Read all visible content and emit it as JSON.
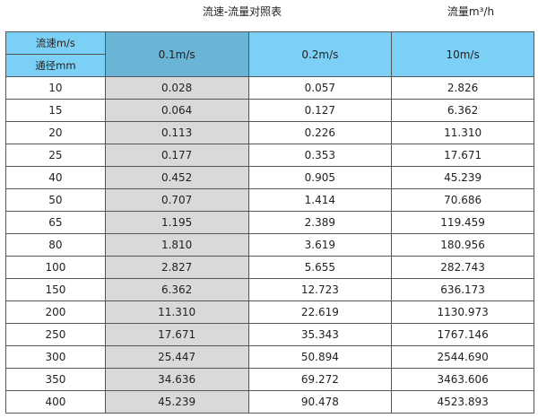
{
  "title": "流速-流量对照表",
  "unit_label": "流量m³/h",
  "header": {
    "velocity_label": "流速m/s",
    "diameter_label": "通径mm",
    "columns": [
      "0.1m/s",
      "0.2m/s",
      "10m/s"
    ]
  },
  "colors": {
    "header": "#7ccff5",
    "header_highlight": "#6ab4d6",
    "highlight_column": "#d9d9d9"
  },
  "rows": [
    [
      "10",
      "0.028",
      "0.057",
      "2.826"
    ],
    [
      "15",
      "0.064",
      "0.127",
      "6.362"
    ],
    [
      "20",
      "0.113",
      "0.226",
      "11.310"
    ],
    [
      "25",
      "0.177",
      "0.353",
      "17.671"
    ],
    [
      "40",
      "0.452",
      "0.905",
      "45.239"
    ],
    [
      "50",
      "0.707",
      "1.414",
      "70.686"
    ],
    [
      "65",
      "1.195",
      "2.389",
      "119.459"
    ],
    [
      "80",
      "1.810",
      "3.619",
      "180.956"
    ],
    [
      "100",
      "2.827",
      "5.655",
      "282.743"
    ],
    [
      "150",
      "6.362",
      "12.723",
      "636.173"
    ],
    [
      "200",
      "11.310",
      "22.619",
      "1130.973"
    ],
    [
      "250",
      "17.671",
      "35.343",
      "1767.146"
    ],
    [
      "300",
      "25.447",
      "50.894",
      "2544.690"
    ],
    [
      "350",
      "34.636",
      "69.272",
      "3463.606"
    ],
    [
      "400",
      "45.239",
      "90.478",
      "4523.893"
    ]
  ]
}
